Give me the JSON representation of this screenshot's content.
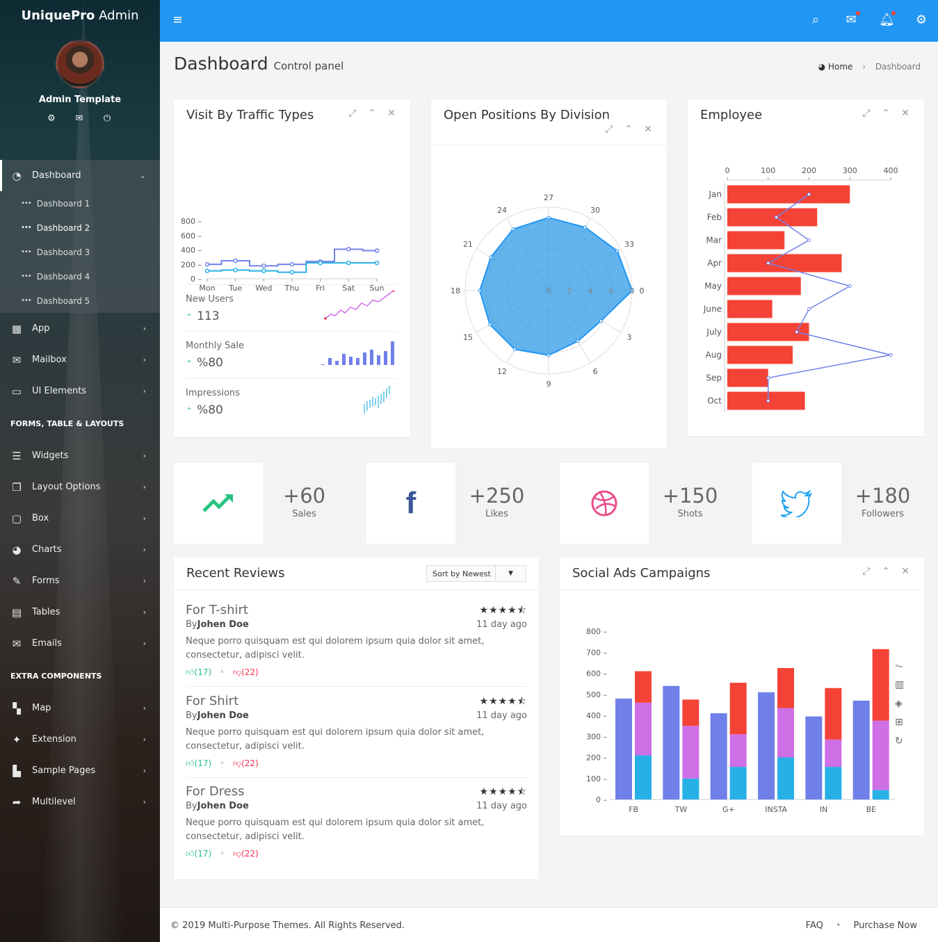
{
  "app": {
    "logo_bold": "UniquePro",
    "logo_rest": " Admin",
    "user": "Admin Template"
  },
  "sidebar": {
    "items_top": [
      {
        "label": "Dashboard",
        "icon": "dashboard-icon"
      }
    ],
    "dashboard_sub": [
      "Dashboard 1",
      "Dashboard 2",
      "Dashboard 3",
      "Dashboard 4",
      "Dashboard 5"
    ],
    "items_main": [
      {
        "label": "App",
        "icon": "apps-icon"
      },
      {
        "label": "Mailbox",
        "icon": "mail-icon"
      },
      {
        "label": "UI Elements",
        "icon": "laptop-icon"
      }
    ],
    "section1": "FORMS, TABLE & LAYOUTS",
    "items_forms": [
      {
        "label": "Widgets",
        "icon": "list-icon"
      },
      {
        "label": "Layout Options",
        "icon": "copy-icon"
      },
      {
        "label": "Box",
        "icon": "square-icon"
      },
      {
        "label": "Charts",
        "icon": "pie-icon"
      },
      {
        "label": "Forms",
        "icon": "edit-icon"
      },
      {
        "label": "Tables",
        "icon": "table-icon"
      },
      {
        "label": "Emails",
        "icon": "envelope-open-icon"
      }
    ],
    "section2": "EXTRA COMPONENTS",
    "items_extra": [
      {
        "label": "Map",
        "icon": "map-icon"
      },
      {
        "label": "Extension",
        "icon": "plug-icon"
      },
      {
        "label": "Sample Pages",
        "icon": "file-icon"
      },
      {
        "label": "Multilevel",
        "icon": "share-icon"
      }
    ]
  },
  "page": {
    "title": "Dashboard",
    "subtitle": "Control panel",
    "breadcrumb_home": "Home",
    "breadcrumb_current": "Dashboard"
  },
  "traffic": {
    "title": "Visit By Traffic Types",
    "mini": [
      {
        "label": "New Users",
        "value": "113"
      },
      {
        "label": "Monthly Sale",
        "value": "%80"
      },
      {
        "label": "Impressions",
        "value": "%80"
      }
    ]
  },
  "positions": {
    "title": "Open Positions By Division"
  },
  "employee": {
    "title": "Employee"
  },
  "stats": [
    {
      "value": "+60",
      "label": "Sales",
      "icon": "trending-up-icon"
    },
    {
      "value": "+250",
      "label": "Likes",
      "icon": "facebook-icon"
    },
    {
      "value": "+150",
      "label": "Shots",
      "icon": "dribbble-icon"
    },
    {
      "value": "+180",
      "label": "Followers",
      "icon": "twitter-icon"
    }
  ],
  "reviews": {
    "title": "Recent Reviews",
    "sort": "Sort by Newest",
    "items": [
      {
        "title": "For T-shirt",
        "by": "By",
        "author": "Johen Doe",
        "ago": "11 day ago",
        "text": "Neque porro quisquam est qui dolorem ipsum quia dolor sit amet, consectetur, adipisci velit.",
        "up": "(17)",
        "down": "(22)",
        "rating": 4.5
      },
      {
        "title": "For Shirt",
        "by": "By",
        "author": "Johen Doe",
        "ago": "11 day ago",
        "text": "Neque porro quisquam est qui dolorem ipsum quia dolor sit amet, consectetur, adipisci velit.",
        "up": "(17)",
        "down": "(22)",
        "rating": 4.5
      },
      {
        "title": "For Dress",
        "by": "By",
        "author": "Johen Doe",
        "ago": "11 day ago",
        "text": "Neque porro quisquam est qui dolorem ipsum quia dolor sit amet, consectetur, adipisci velit.",
        "up": "(17)",
        "down": "(22)",
        "rating": 4.5
      }
    ]
  },
  "social": {
    "title": "Social Ads Campaigns"
  },
  "footer": {
    "copy": "© 2019 Multi-Purpose Themes. All Rights Reserved.",
    "faq": "FAQ",
    "purchase": "Purchase Now"
  },
  "colors": {
    "topbar": "#2196f3",
    "accent_red": "#f44336",
    "blue_series": "#6f80e9",
    "cyan_series": "#27b0e6",
    "purple_series": "#cf6fe6"
  },
  "chart_data": [
    {
      "type": "line",
      "title": "Visit By Traffic Types",
      "categories": [
        "Mon",
        "Tue",
        "Wed",
        "Thu",
        "Fri",
        "Sat",
        "Sun"
      ],
      "ylim": [
        0,
        800
      ],
      "yticks": [
        0,
        200,
        400,
        600,
        800
      ],
      "series": [
        {
          "values": [
            200,
            250,
            180,
            200,
            240,
            410,
            390
          ],
          "color": "#6f80e9"
        },
        {
          "values": [
            110,
            120,
            110,
            90,
            220,
            220,
            220
          ],
          "color": "#27b0e6"
        }
      ]
    },
    {
      "type": "radar",
      "title": "Open Positions By Division",
      "angle_ticks": [
        "0",
        "3",
        "6",
        "9",
        "12",
        "15",
        "18",
        "21",
        "24",
        "27",
        "30",
        "33"
      ],
      "radial_ticks": [
        "0",
        "2",
        "4",
        "6",
        "8"
      ],
      "rmax": 8,
      "values": [
        8,
        5.8,
        5.6,
        6.2,
        6.5,
        6.5,
        6.6,
        6.4,
        6.8,
        7.0,
        7.0,
        7.6
      ]
    },
    {
      "type": "bar",
      "title": "Employee",
      "categories": [
        "Jan",
        "Feb",
        "Mar",
        "Apr",
        "May",
        "June",
        "July",
        "Aug",
        "Sep",
        "Oct"
      ],
      "xlim": [
        0,
        400
      ],
      "xticks": [
        0,
        100,
        200,
        300,
        400
      ],
      "bars": [
        300,
        220,
        140,
        280,
        180,
        110,
        200,
        160,
        100,
        190
      ],
      "line": [
        200,
        120,
        200,
        100,
        300,
        200,
        170,
        400,
        100,
        100
      ]
    },
    {
      "type": "bar",
      "title": "Social Ads Campaigns",
      "categories": [
        "FB",
        "TW",
        "G+",
        "INSTA",
        "IN",
        "BE"
      ],
      "ylim": [
        0,
        800
      ],
      "yticks": [
        0,
        100,
        200,
        300,
        400,
        500,
        600,
        700,
        800
      ],
      "groups": [
        {
          "single": 480,
          "stack": [
            210,
            250,
            150
          ]
        },
        {
          "single": 540,
          "stack": [
            100,
            250,
            125
          ]
        },
        {
          "single": 410,
          "stack": [
            155,
            155,
            245
          ]
        },
        {
          "single": 510,
          "stack": [
            200,
            235,
            190
          ]
        },
        {
          "single": 395,
          "stack": [
            155,
            130,
            245
          ]
        },
        {
          "single": 470,
          "stack": [
            45,
            330,
            340
          ]
        }
      ],
      "stack_colors": [
        "#27b0e6",
        "#cf6fe6",
        "#f44336"
      ],
      "single_color": "#6f80e9"
    }
  ]
}
